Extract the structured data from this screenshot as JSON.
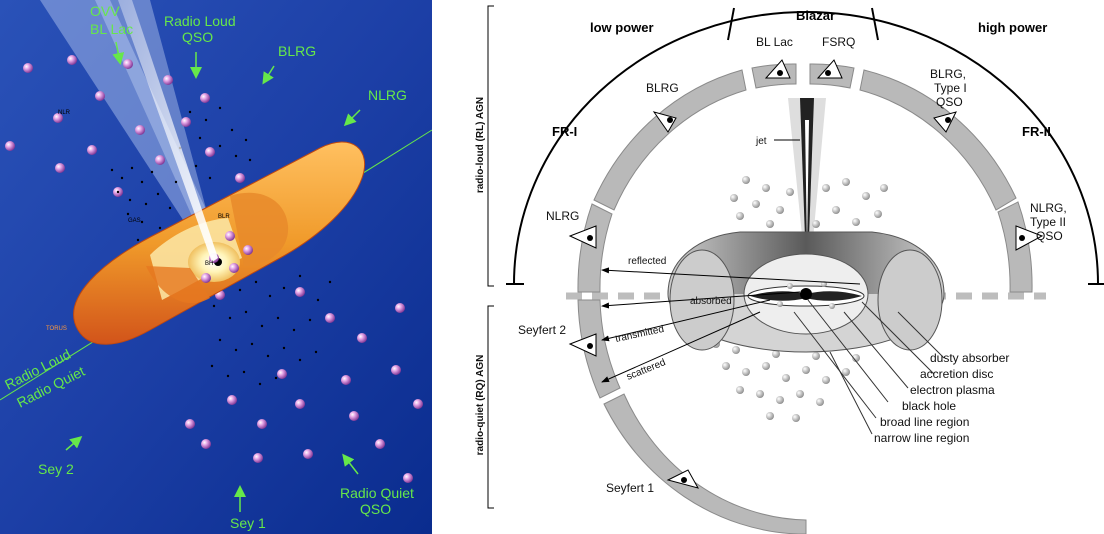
{
  "left_panel": {
    "labels": {
      "ovv": "OVV",
      "bl_lac": "BL Lac",
      "radio_loud_qso_1": "Radio Loud",
      "radio_loud_qso_2": "QSO",
      "blrg": "BLRG",
      "nlrg": "NLRG",
      "radio_loud": "Radio Loud",
      "radio_quiet": "Radio Quiet",
      "sey2": "Sey 2",
      "sey1": "Sey 1",
      "radio_quiet_qso_1": "Radio Quiet",
      "radio_quiet_qso_2": "QSO",
      "nlr": "NLR",
      "gas": "GAS",
      "blr": "BLR",
      "bh": "BH",
      "torus": "TORUS"
    },
    "colors": {
      "sky_top": "#1b3fa0",
      "sky_bottom": "#0b2a8a",
      "label": "#66e84a",
      "torus": "#f0a030"
    }
  },
  "right_panel": {
    "labels": {
      "blazar": "Blazar",
      "low_power": "low power",
      "high_power": "high power",
      "bl_lac": "BL Lac",
      "fsrq": "FSRQ",
      "blrg": "BLRG",
      "blrg_type1_1": "BLRG,",
      "blrg_type1_2": "Type I",
      "blrg_type1_3": "QSO",
      "fr1": "FR-I",
      "fr2": "FR-II",
      "nlrg": "NLRG",
      "nlrg_type2_1": "NLRG,",
      "nlrg_type2_2": "Type II",
      "nlrg_type2_3": "QSO",
      "jet": "jet",
      "reflected": "reflected",
      "absorbed": "absorbed",
      "transmitted": "transmitted",
      "scattered": "scattered",
      "seyfert2": "Seyfert 2",
      "seyfert1": "Seyfert 1",
      "dusty_absorber": "dusty absorber",
      "accretion_disc": "accretion disc",
      "electron_plasma": "electron plasma",
      "black_hole": "black hole",
      "broad_line_region": "broad line region",
      "narrow_line_region": "narrow line region",
      "radio_loud_agn": "radio-loud (RL) AGN",
      "radio_quiet_agn": "radio-quiet (RQ) AGN"
    }
  }
}
